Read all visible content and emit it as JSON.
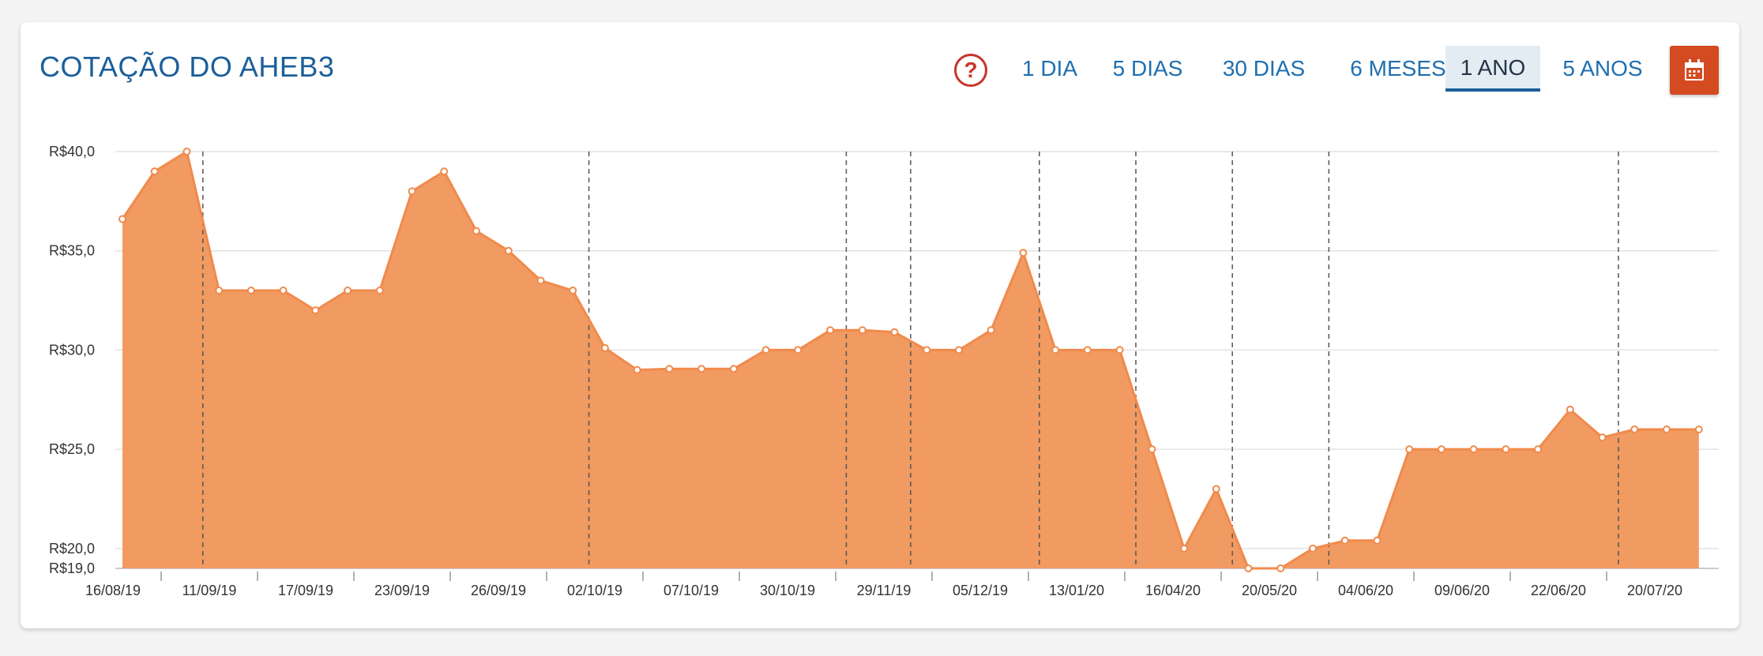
{
  "header": {
    "title": "COTAÇÃO DO AHEB3",
    "help_icon": "?",
    "tabs": [
      {
        "label": "1 DIA",
        "active": false
      },
      {
        "label": "5 DIAS",
        "active": false
      },
      {
        "label": "30 DIAS",
        "active": false
      },
      {
        "label": "6 MESES",
        "active": false
      },
      {
        "label": "1 ANO",
        "active": true
      },
      {
        "label": "5 ANOS",
        "active": false
      }
    ],
    "calendar_icon": "calendar-icon"
  },
  "colors": {
    "accent": "#f08a4b",
    "fill": "#f19a62",
    "title": "#1c5f9b",
    "calendar_button": "#d44a21"
  },
  "chart_data": {
    "type": "area",
    "title": "",
    "xlabel": "",
    "ylabel": "",
    "ylim": [
      19,
      40
    ],
    "ytick_values": [
      19,
      20,
      25,
      30,
      35,
      40
    ],
    "ytick_labels": [
      "R$19,0",
      "R$20,0",
      "R$25,0",
      "R$30,0",
      "R$35,0",
      "R$40,0"
    ],
    "xtick_labels": [
      "16/08/19",
      "11/09/19",
      "17/09/19",
      "23/09/19",
      "26/09/19",
      "02/10/19",
      "07/10/19",
      "30/10/19",
      "29/11/19",
      "05/12/19",
      "13/01/20",
      "16/04/20",
      "20/05/20",
      "04/06/20",
      "09/06/20",
      "22/06/20",
      "20/07/20"
    ],
    "dashed_lines_after_point": [
      3,
      15,
      23,
      25,
      29,
      32,
      35,
      38,
      47
    ],
    "grid": true,
    "legend": "none",
    "values": [
      36.6,
      39.0,
      40.0,
      33.0,
      33.0,
      33.0,
      32.0,
      33.0,
      33.0,
      38.0,
      39.0,
      36.0,
      35.0,
      33.5,
      33.0,
      30.1,
      29.0,
      29.05,
      29.05,
      29.05,
      30.0,
      30.0,
      31.0,
      31.0,
      30.9,
      30.0,
      30.0,
      31.0,
      34.9,
      30.0,
      30.0,
      30.0,
      25.0,
      20.0,
      23.0,
      19.0,
      19.0,
      20.0,
      20.4,
      20.4,
      25.0,
      25.0,
      25.0,
      25.0,
      25.0,
      27.0,
      25.6,
      26.0,
      26.0,
      26.0
    ]
  }
}
